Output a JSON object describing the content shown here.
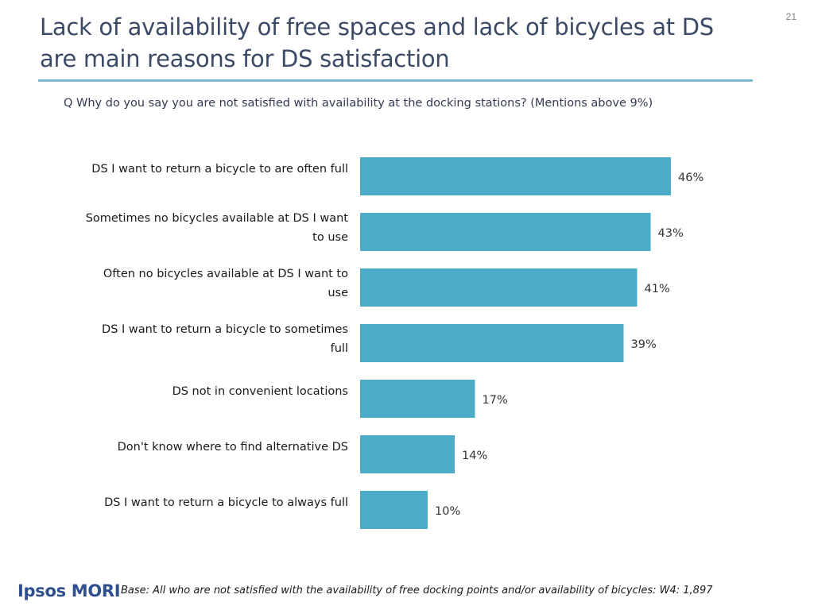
{
  "slide": {
    "title": "Lack of availability of free spaces and lack of bicycles at DS are main reasons for DS satisfaction",
    "page_number": "21",
    "question": "Q Why do you say you are not satisfied with availability at the docking stations?  (Mentions above 9%)",
    "logo_text": "Ipsos MORI",
    "footnote": "Base: All who are not satisfied with the availability of free docking points and/or availability of bicycles: W4: 1,897"
  },
  "colors": {
    "bar": "#4badc6",
    "title": "#3b4a66",
    "rule": "#5aa5c8"
  },
  "chart_data": {
    "type": "bar",
    "orientation": "horizontal",
    "categories": [
      "DS I want to return a bicycle to are often full",
      "Sometimes no bicycles available at DS I want to use",
      "Often no bicycles available at DS I want to use",
      "DS I want to return a bicycle to sometimes full",
      "DS not in convenient locations",
      "Don't know where to find alternative DS",
      "DS I want to return a bicycle to always full"
    ],
    "category_lines": [
      [
        "DS I want to return a bicycle to are often full"
      ],
      [
        "Sometimes no bicycles available at DS I want",
        "to use"
      ],
      [
        "Often no bicycles available at DS I want to",
        "use"
      ],
      [
        "DS I want to return a bicycle to sometimes",
        "full"
      ],
      [
        "DS not in convenient locations"
      ],
      [
        "Don't know where to find alternative DS"
      ],
      [
        "DS I want to return a bicycle to always full"
      ]
    ],
    "values": [
      46,
      43,
      41,
      39,
      17,
      14,
      10
    ],
    "value_labels": [
      "46%",
      "43%",
      "41%",
      "39%",
      "17%",
      "14%",
      "10%"
    ],
    "xlim": [
      0,
      100
    ],
    "grid": false,
    "legend": "none"
  }
}
